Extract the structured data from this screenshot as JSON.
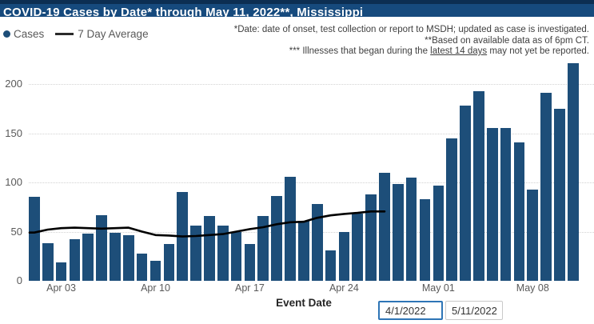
{
  "title_bar": {
    "title": "COVID-19 Cases by Date* through May 11, 2022**, Mississippi"
  },
  "legend": {
    "cases": "Cases",
    "average": "7 Day Average"
  },
  "notes": {
    "line1": "*Date: date of onset, test collection or report to MSDH; updated as case is investigated.",
    "line2": "**Based on available data as of 6pm CT.",
    "line3_prefix": "*** Illnesses that began during the ",
    "line3_underline": "latest 14 days",
    "line3_suffix": " may not yet be reported."
  },
  "filters": {
    "start_date": "4/1/2022",
    "end_date": "5/11/2022"
  },
  "colors": {
    "title_bg": "#164a7d",
    "title_bg_edge": "#0c2e52",
    "bar": "#1d4e79",
    "avg_line": "#000000",
    "axis_text": "#595959",
    "notes_text": "#3f3f3f",
    "start_input_border": "#2e75b6"
  },
  "chart_data": {
    "type": "bar",
    "title": "COVID-19 Cases by Date* through May 11, 2022**, Mississippi",
    "xlabel": "Event Date",
    "ylabel": "",
    "ylim": [
      0,
      225
    ],
    "y_ticks": [
      0,
      50,
      100,
      150,
      200
    ],
    "grid": "horizontal-dotted",
    "legend_position": "top-left",
    "dates": [
      "Apr 01",
      "Apr 02",
      "Apr 03",
      "Apr 04",
      "Apr 05",
      "Apr 06",
      "Apr 07",
      "Apr 08",
      "Apr 09",
      "Apr 10",
      "Apr 11",
      "Apr 12",
      "Apr 13",
      "Apr 14",
      "Apr 15",
      "Apr 16",
      "Apr 17",
      "Apr 18",
      "Apr 19",
      "Apr 20",
      "Apr 21",
      "Apr 22",
      "Apr 23",
      "Apr 24",
      "Apr 25",
      "Apr 26",
      "Apr 27",
      "Apr 28",
      "Apr 29",
      "Apr 30",
      "May 01",
      "May 02",
      "May 03",
      "May 04",
      "May 05",
      "May 06",
      "May 07",
      "May 08",
      "May 09",
      "May 10",
      "May 11"
    ],
    "series": [
      {
        "name": "Cases",
        "type": "bar",
        "values": [
          85,
          38,
          19,
          42,
          48,
          67,
          49,
          46,
          28,
          20,
          37,
          90,
          56,
          66,
          56,
          50,
          37,
          66,
          86,
          106,
          61,
          78,
          31,
          50,
          68,
          88,
          110,
          98,
          105,
          83,
          97,
          145,
          178,
          193,
          155,
          155,
          141,
          93,
          191,
          175,
          221
        ]
      },
      {
        "name": "7 Day Average",
        "type": "line",
        "values": [
          49,
          52,
          53.5,
          54,
          53.5,
          53,
          53.5,
          54,
          50,
          46.5,
          46,
          45,
          45.5,
          46.5,
          47.5,
          50,
          52.5,
          54.5,
          57.5,
          59.5,
          60,
          64,
          66.5,
          68,
          69,
          70.5,
          70.5
        ]
      }
    ],
    "x_ticks": [
      {
        "index": 2,
        "label": "Apr 03"
      },
      {
        "index": 9,
        "label": "Apr 10"
      },
      {
        "index": 16,
        "label": "Apr 17"
      },
      {
        "index": 23,
        "label": "Apr 24"
      },
      {
        "index": 30,
        "label": "May 01"
      },
      {
        "index": 37,
        "label": "May 08"
      }
    ]
  }
}
